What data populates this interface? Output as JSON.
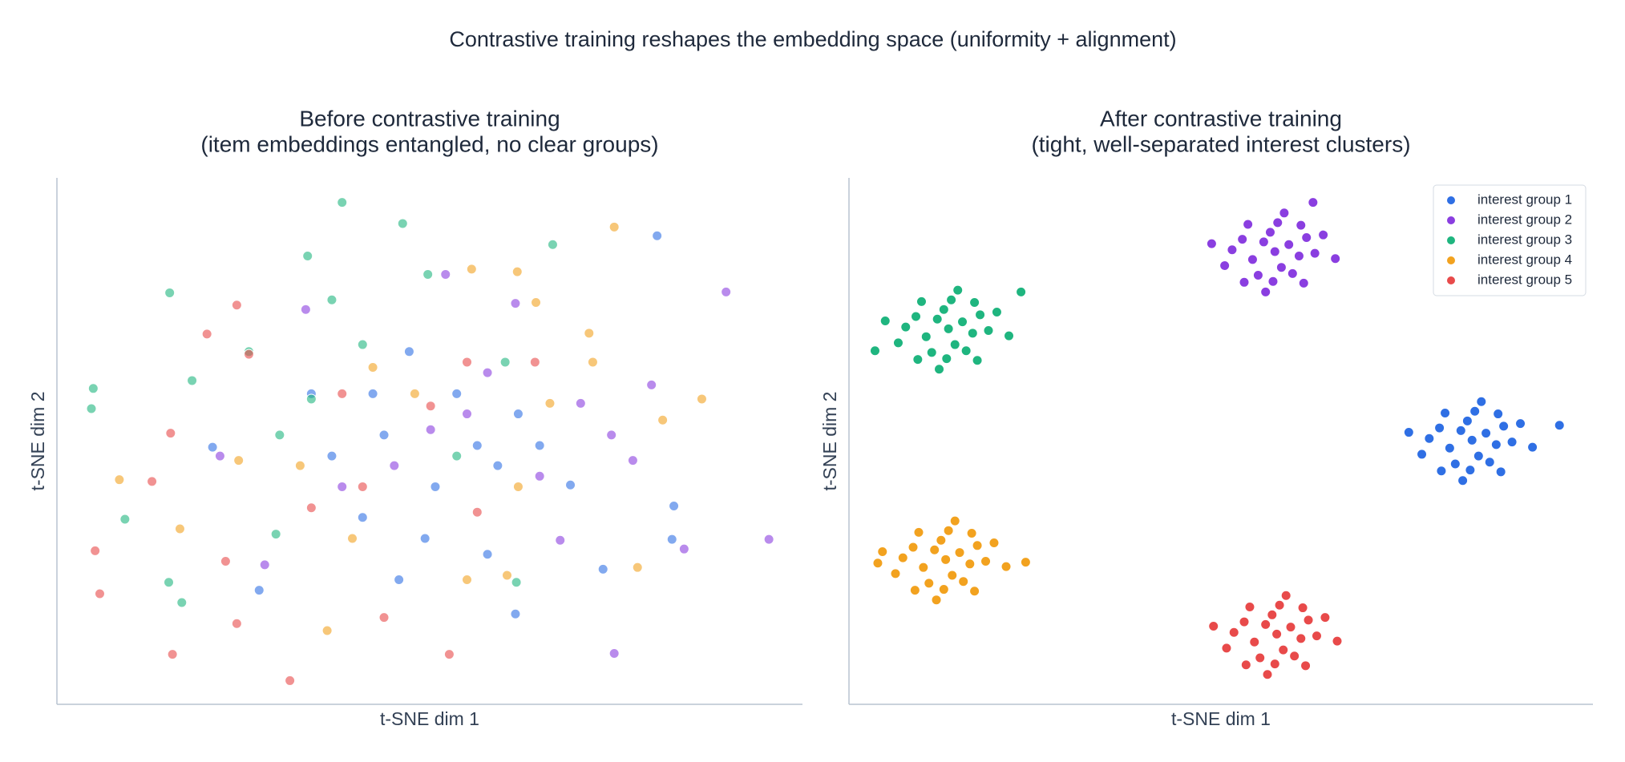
{
  "title": "Contrastive training reshapes the embedding space (uniformity + alignment)",
  "chart_data": [
    {
      "type": "scatter",
      "title": [
        "Before contrastive training",
        "(item embeddings entangled, no clear groups)"
      ],
      "xlabel": "t-SNE dim 1",
      "ylabel": "t-SNE dim 2",
      "xlim": [
        -40,
        40
      ],
      "ylim": [
        -30,
        30
      ],
      "alpha": 0.6,
      "series": [
        {
          "name": "interest group 1",
          "color": "#2f6fe4",
          "x": [
            24.4,
            26.2,
            26.0,
            18.6,
            9.2,
            -18.3,
            -23.3,
            -10.5,
            -4.9,
            0.6,
            5.1,
            9.5,
            2.9,
            -3.3,
            6.2,
            15.1,
            -12.7,
            -7.2,
            -0.5,
            7.3,
            11.8,
            -2.2,
            -6.1
          ],
          "y": [
            23.4,
            -7.4,
            -11.2,
            -14.6,
            -19.7,
            -17.0,
            -0.7,
            -1.7,
            0.7,
            -5.2,
            -0.5,
            3.1,
            5.4,
            -15.8,
            -12.9,
            -5.0,
            5.4,
            -8.7,
            -11.1,
            -2.8,
            -0.5,
            10.2,
            5.4
          ]
        },
        {
          "name": "interest group 2",
          "color": "#8a3ee0",
          "x": [
            31.8,
            36.4,
            27.3,
            19.8,
            23.8,
            19.5,
            1.7,
            9.2,
            -13.3,
            14.0,
            -17.7,
            -9.4,
            -3.8,
            4.0,
            0.1,
            6.2,
            11.8,
            16.2,
            -22.5,
            21.8
          ],
          "y": [
            17.0,
            -11.2,
            -12.3,
            -24.2,
            6.4,
            0.7,
            19.0,
            15.7,
            15.0,
            -11.3,
            -14.1,
            -5.2,
            -2.8,
            3.1,
            1.3,
            7.8,
            -4.0,
            4.3,
            -1.7,
            -2.2
          ]
        },
        {
          "name": "interest group 3",
          "color": "#1fb57f",
          "x": [
            -9.4,
            -2.9,
            13.2,
            -13.1,
            -27.9,
            -36.1,
            -36.3,
            -32.7,
            -26.6,
            -28.0,
            -0.2,
            -10.5,
            -7.2,
            -19.4,
            -16.1,
            -12.7,
            2.9,
            8.1,
            9.3,
            -16.5,
            -25.5
          ],
          "y": [
            27.2,
            24.8,
            22.4,
            21.1,
            16.9,
            6.0,
            3.7,
            -8.9,
            -18.4,
            -16.1,
            19.0,
            16.1,
            11.0,
            10.2,
            0.7,
            4.8,
            -1.7,
            9.0,
            -16.1,
            -10.6,
            6.9
          ]
        },
        {
          "name": "interest group 4",
          "color": "#f2a21f",
          "x": [
            19.8,
            29.2,
            25.0,
            22.3,
            -33.3,
            -26.8,
            -11.0,
            4.5,
            9.4,
            11.4,
            17.1,
            17.5,
            -1.6,
            -6.1,
            4.0,
            8.3,
            -13.9,
            -8.3,
            9.5,
            12.9,
            -20.5
          ],
          "y": [
            24.4,
            4.8,
            2.4,
            -14.4,
            -4.4,
            -10.0,
            -21.6,
            19.6,
            19.3,
            15.8,
            12.3,
            9.0,
            5.4,
            8.4,
            -15.8,
            -15.3,
            -2.8,
            -11.1,
            -5.2,
            4.3,
            -2.2
          ]
        },
        {
          "name": "interest group 5",
          "color": "#e84a4a",
          "x": [
            -20.7,
            -23.9,
            -35.9,
            -35.4,
            -29.8,
            -27.6,
            -20.7,
            -15.0,
            2.1,
            -4.9,
            -27.8,
            -19.4,
            -12.7,
            -7.2,
            0.1,
            4.0,
            11.3,
            5.1,
            -9.4,
            -21.9
          ],
          "y": [
            15.5,
            12.2,
            -12.5,
            -17.4,
            -4.6,
            -24.3,
            -20.8,
            -27.3,
            -24.3,
            -20.1,
            0.9,
            9.9,
            -7.6,
            -5.2,
            4.0,
            9.0,
            9.0,
            -8.1,
            5.4,
            -13.7
          ]
        }
      ]
    },
    {
      "type": "scatter",
      "title": [
        "After contrastive training",
        "(tight, well-separated interest clusters)"
      ],
      "xlabel": "t-SNE dim 1",
      "ylabel": "t-SNE dim 2",
      "xlim": [
        -40,
        40
      ],
      "ylim": [
        -30,
        30
      ],
      "alpha": 1,
      "legend": "upper right",
      "series": [
        {
          "name": "interest group 1",
          "color": "#2f6fe4",
          "x": [
            27.0,
            28.5,
            25.8,
            29.6,
            24.6,
            27.7,
            26.5,
            30.4,
            23.5,
            28.9,
            25.2,
            31.3,
            22.4,
            27.3,
            26.8,
            32.2,
            21.6,
            29.8,
            24.1,
            30.1,
            23.7,
            33.5,
            20.2,
            28.0,
            26.0,
            36.4
          ],
          "y": [
            0.1,
            0.9,
            1.2,
            -0.4,
            -0.8,
            -1.7,
            2.3,
            1.7,
            1.5,
            -2.4,
            -2.6,
            -0.1,
            0.3,
            3.4,
            -3.3,
            2.0,
            -1.5,
            3.1,
            3.2,
            -3.5,
            -3.4,
            -0.7,
            1.0,
            4.5,
            -4.5,
            1.8
          ]
        },
        {
          "name": "interest group 2",
          "color": "#8a3ee0",
          "x": [
            5.8,
            7.3,
            4.6,
            8.4,
            3.4,
            6.5,
            5.3,
            9.2,
            2.3,
            7.7,
            4.0,
            10.1,
            1.2,
            6.1,
            5.6,
            11.0,
            0.4,
            8.6,
            2.9,
            8.9,
            2.5,
            12.3,
            -1.0,
            6.8,
            4.8,
            9.9
          ],
          "y": [
            21.6,
            22.4,
            22.7,
            21.1,
            20.7,
            19.8,
            23.8,
            23.2,
            23.0,
            19.1,
            18.9,
            21.4,
            21.8,
            24.9,
            18.2,
            23.5,
            20.0,
            24.6,
            24.7,
            18.0,
            18.1,
            20.8,
            22.5,
            26.0,
            17.0,
            27.2
          ]
        },
        {
          "name": "interest group 3",
          "color": "#1fb57f",
          "x": [
            -29.3,
            -27.8,
            -30.5,
            -26.7,
            -31.7,
            -28.6,
            -29.8,
            -25.9,
            -32.8,
            -27.4,
            -31.1,
            -25.0,
            -33.9,
            -29.0,
            -29.5,
            -24.1,
            -34.7,
            -26.5,
            -32.2,
            -26.2,
            -32.6,
            -22.8,
            -36.1,
            -28.3,
            -30.3,
            -21.5,
            -37.2
          ],
          "y": [
            12.8,
            13.6,
            13.9,
            12.3,
            11.9,
            11.0,
            15.0,
            14.4,
            14.2,
            10.3,
            10.1,
            12.6,
            13.0,
            16.1,
            9.4,
            14.7,
            11.2,
            15.8,
            15.9,
            9.2,
            9.3,
            12.0,
            13.7,
            17.2,
            8.2,
            17.0,
            10.3
          ]
        },
        {
          "name": "interest group 4",
          "color": "#f2a21f",
          "x": [
            -29.6,
            -28.1,
            -30.8,
            -27.0,
            -32.0,
            -28.9,
            -30.1,
            -26.2,
            -33.1,
            -27.7,
            -31.4,
            -25.3,
            -34.2,
            -29.3,
            -29.8,
            -24.4,
            -35.0,
            -26.8,
            -32.5,
            -26.5,
            -32.9,
            -23.1,
            -36.4,
            -28.6,
            -30.6,
            -21.0,
            -36.9
          ],
          "y": [
            -13.5,
            -12.7,
            -12.4,
            -14.0,
            -14.4,
            -15.3,
            -11.3,
            -11.9,
            -12.1,
            -16.0,
            -16.2,
            -13.7,
            -13.3,
            -10.2,
            -16.9,
            -11.6,
            -15.1,
            -10.5,
            -10.4,
            -17.1,
            -17.0,
            -14.3,
            -12.6,
            -9.1,
            -18.1,
            -13.8,
            -13.9
          ]
        },
        {
          "name": "interest group 5",
          "color": "#e84a4a",
          "x": [
            6.0,
            7.5,
            4.8,
            8.6,
            3.6,
            6.7,
            5.5,
            9.4,
            2.5,
            7.9,
            4.2,
            10.3,
            1.4,
            6.3,
            5.8,
            11.2,
            0.6,
            8.8,
            3.1,
            9.1,
            2.7,
            12.5,
            -0.8,
            7.0,
            5.0
          ],
          "y": [
            -22.0,
            -21.2,
            -20.9,
            -22.5,
            -22.9,
            -23.8,
            -19.8,
            -20.4,
            -20.6,
            -24.5,
            -24.7,
            -22.2,
            -21.8,
            -18.7,
            -25.4,
            -20.1,
            -23.6,
            -19.0,
            -18.9,
            -25.6,
            -25.5,
            -22.8,
            -21.1,
            -17.6,
            -26.6
          ]
        }
      ]
    }
  ]
}
